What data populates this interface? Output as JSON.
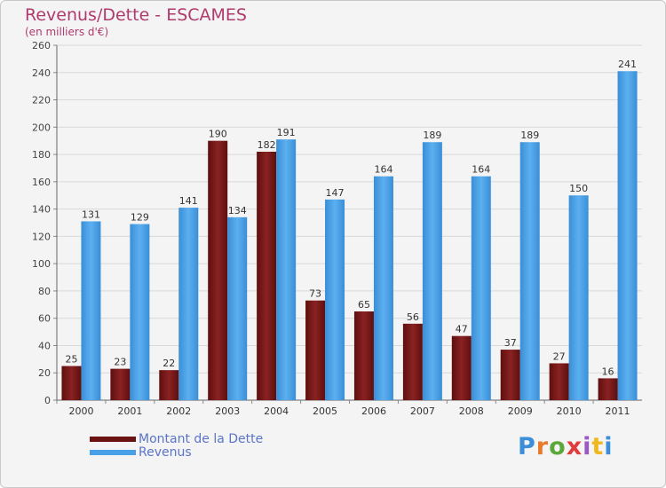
{
  "title": "Revenus/Dette - ESCAMES",
  "subtitle": "(en milliers d'€)",
  "logo": {
    "text": "Proxiti",
    "colors": [
      "#3a8fd8",
      "#e87a2a",
      "#5aa83a",
      "#e23b3b",
      "#9a59c4",
      "#f0b820",
      "#3a8fd8"
    ]
  },
  "colors": {
    "dette": "#7a1a1a",
    "revenus": "#4aa0e6",
    "title": "#b03a6c",
    "legend_text": "#5b74c8"
  },
  "chart_data": {
    "type": "bar",
    "categories": [
      "2000",
      "2001",
      "2002",
      "2003",
      "2004",
      "2005",
      "2006",
      "2007",
      "2008",
      "2009",
      "2010",
      "2011"
    ],
    "series": [
      {
        "name": "Montant de la Dette",
        "values": [
          25,
          23,
          22,
          190,
          182,
          73,
          65,
          56,
          47,
          37,
          27,
          16
        ]
      },
      {
        "name": "Revenus",
        "values": [
          131,
          129,
          141,
          134,
          191,
          147,
          164,
          189,
          164,
          189,
          150,
          241
        ]
      }
    ],
    "ylim": [
      0,
      260
    ],
    "yticks": [
      0,
      20,
      40,
      60,
      80,
      100,
      120,
      140,
      160,
      180,
      200,
      220,
      240,
      260
    ],
    "grid": true,
    "legend": "bottom-left"
  }
}
